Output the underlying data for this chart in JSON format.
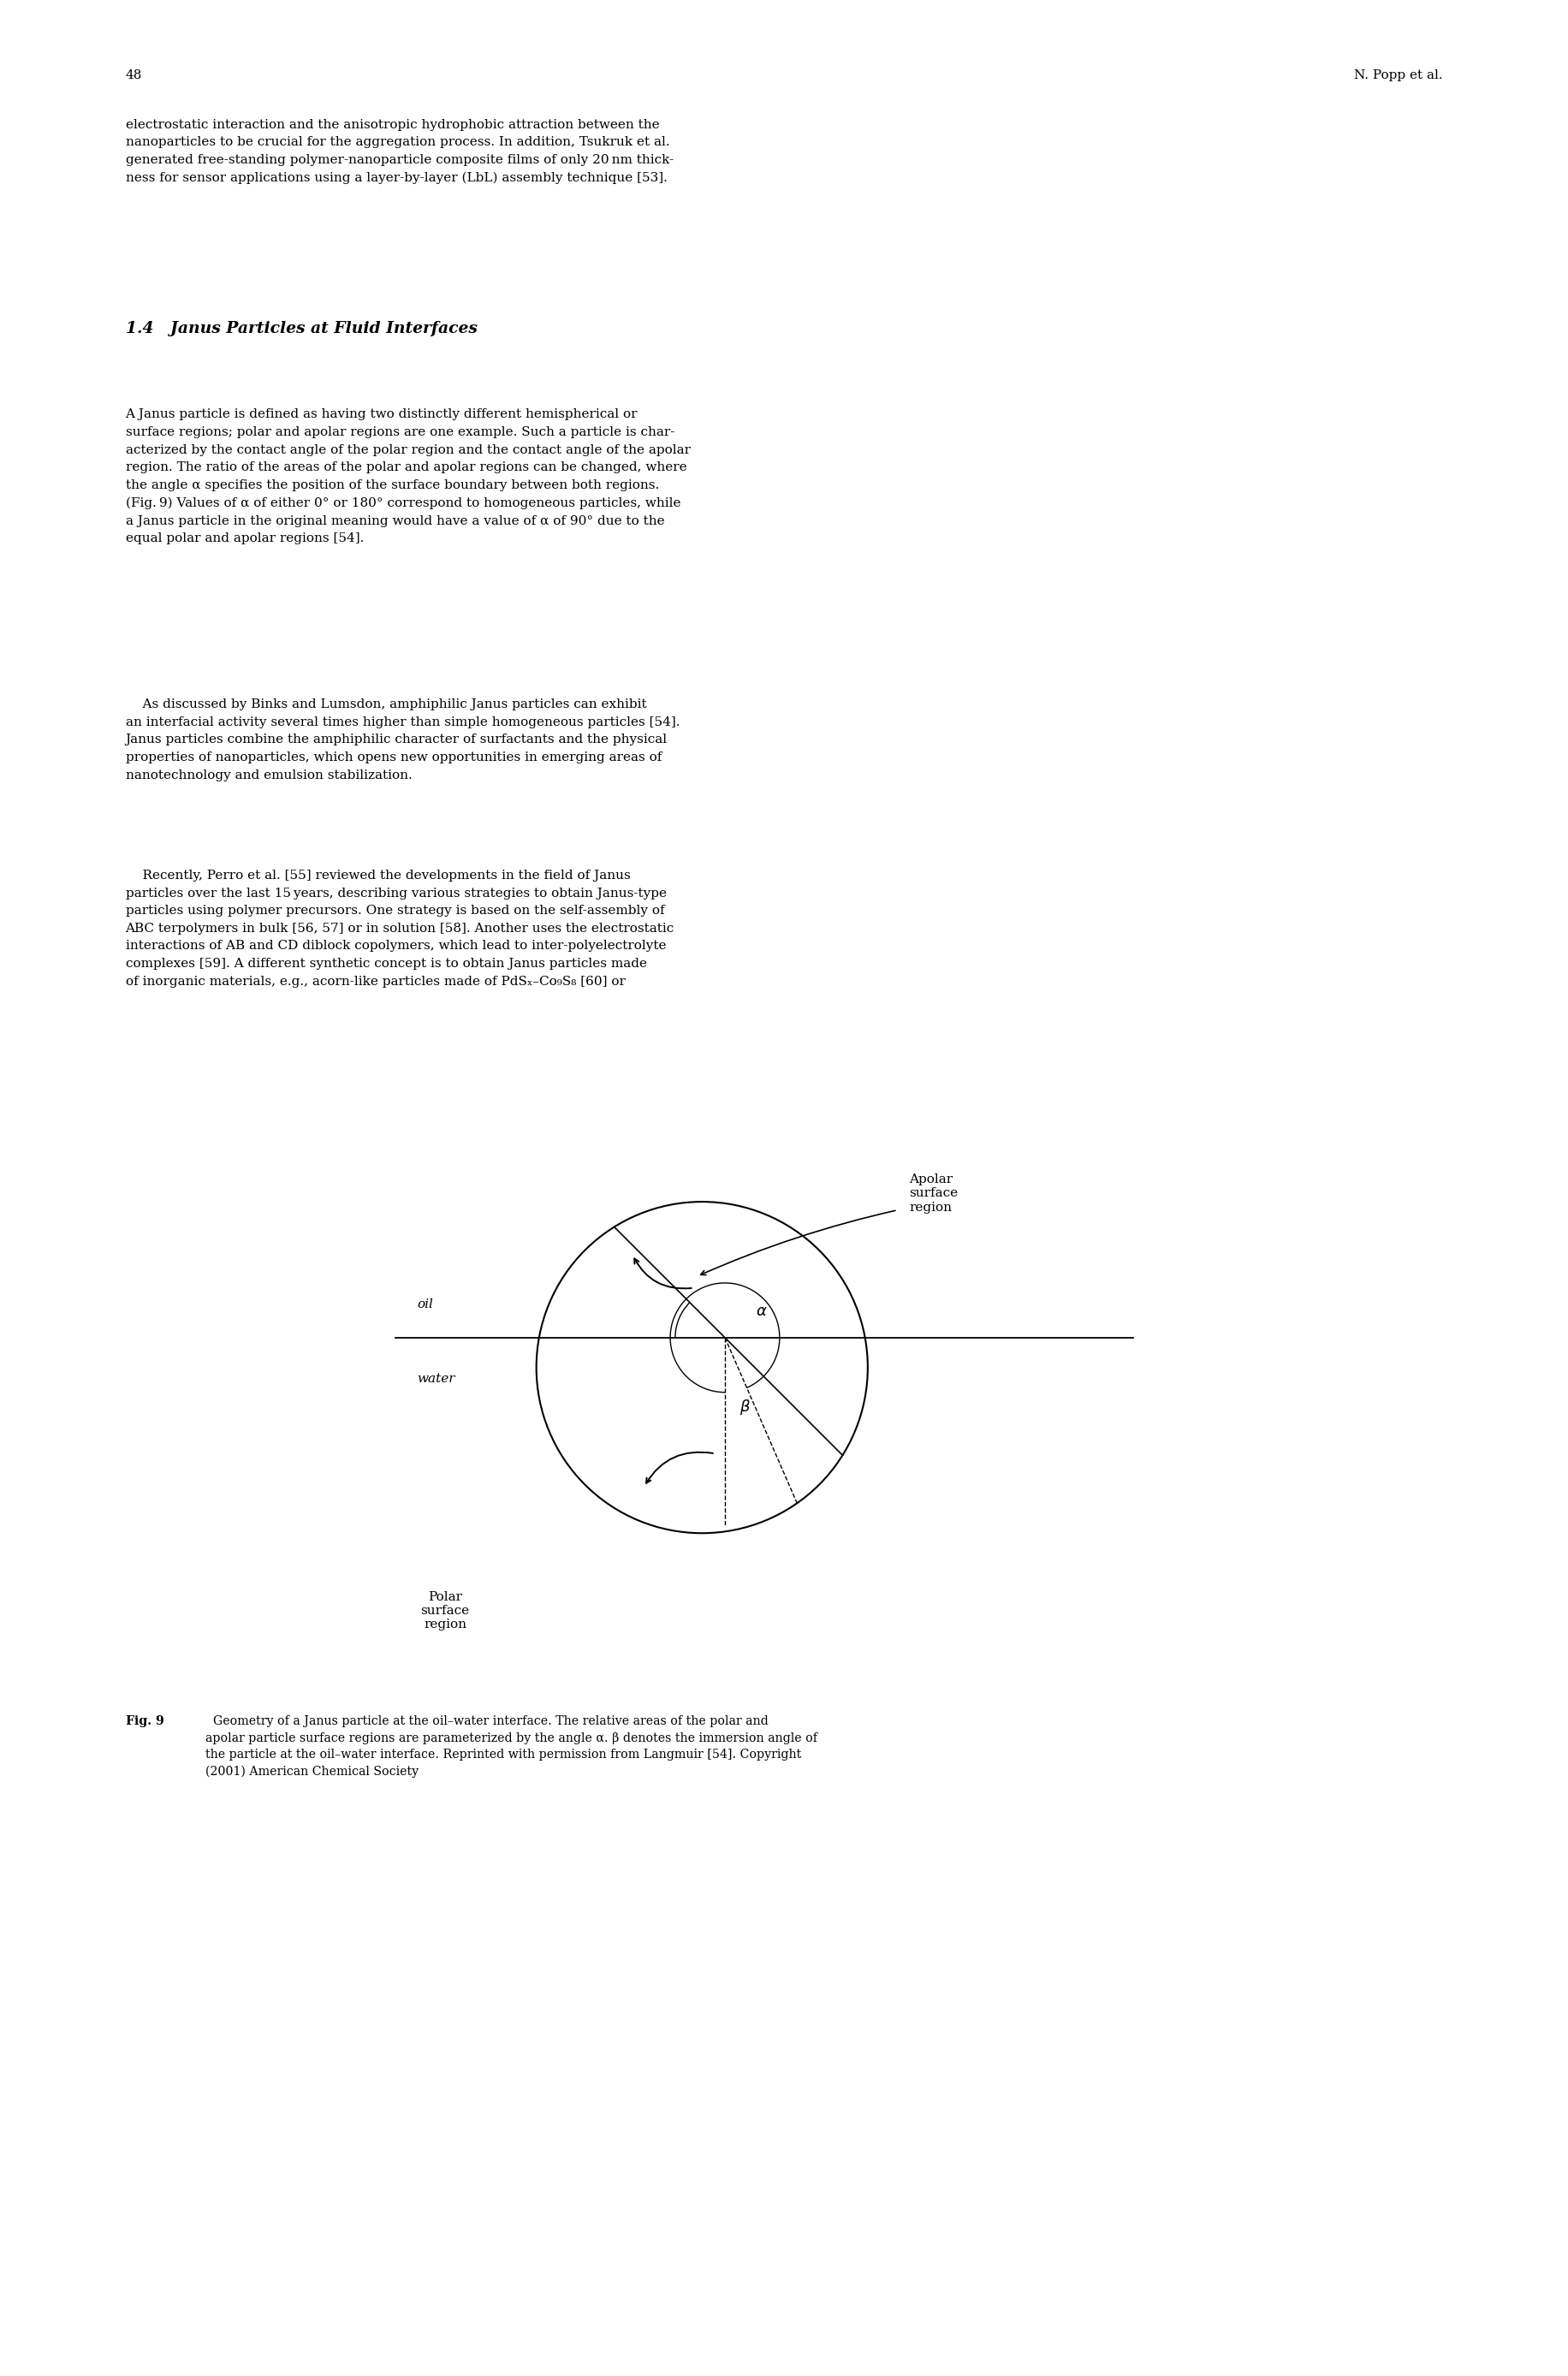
{
  "page_number": "48",
  "header_right": "N. Popp et al.",
  "background_color": "#ffffff",
  "text_color": "#000000",
  "para1": "electrostatic interaction and the anisotropic hydrophobic attraction between the\nnanoparticles to be crucial for the aggregation process. In addition, Tsukruk et al.\ngenerated free-standing polymer-nanoparticle composite films of only 20 nm thick-\nness for sensor applications using a layer-by-layer (LbL) assembly technique [53].",
  "section_title": "1.4   Janus Particles at Fluid Interfaces",
  "para2": "A Janus particle is defined as having two distinctly different hemispherical or\nsurface regions; polar and apolar regions are one example. Such a particle is char-\nacterized by the contact angle of the polar region and the contact angle of the apolar\nregion. The ratio of the areas of the polar and apolar regions can be changed, where\nthe angle α specifies the position of the surface boundary between both regions.\n(Fig. 9) Values of α of either 0° or 180° correspond to homogeneous particles, while\na Janus particle in the original meaning would have a value of α of 90° due to the\nequal polar and apolar regions [54].",
  "para3_indent": "    As discussed by Binks and Lumsdon, amphiphilic Janus particles can exhibit\nan interfacial activity several times higher than simple homogeneous particles [54].\nJanus particles combine the amphiphilic character of surfactants and the physical\nproperties of nanoparticles, which opens new opportunities in emerging areas of\nnanotechnology and emulsion stabilization.",
  "para4_indent": "    Recently, Perro et al. [55] reviewed the developments in the field of Janus\nparticles over the last 15 years, describing various strategies to obtain Janus-type\nparticles using polymer precursors. One strategy is based on the self-assembly of\nABC terpolymers in bulk [56, 57] or in solution [58]. Another uses the electrostatic\ninteractions of AB and CD diblock copolymers, which lead to inter-polyelectrolyte\ncomplexes [59]. A different synthetic concept is to obtain Janus particles made\nof inorganic materials, e.g., acorn-like particles made of PdSₓ–Co₉S₈ [60] or",
  "fig_caption_bold": "Fig. 9",
  "fig_caption_rest": "  Geometry of a Janus particle at the oil–water interface. The relative areas of the polar and\napolar particle surface regions are parameterized by the angle α. β denotes the immersion angle of\nthe particle at the oil–water interface. Reprinted with permission from Langmuir [54]. Copyright\n(2001) American Chemical Society",
  "lm": 0.08,
  "rm": 0.92,
  "fontsize_body": 11.0,
  "fontsize_section": 13.5,
  "fontsize_caption": 10.2,
  "linespacing": 1.6
}
